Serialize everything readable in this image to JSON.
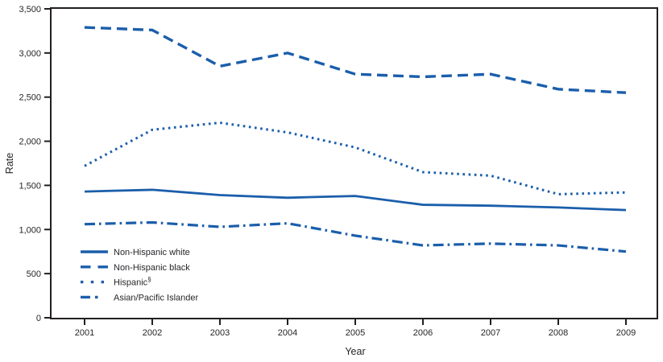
{
  "chart_data": {
    "type": "line",
    "title": "",
    "xlabel": "Year",
    "ylabel": "Rate",
    "x": [
      "2001",
      "2002",
      "2003",
      "2004",
      "2005",
      "2006",
      "2007",
      "2008",
      "2009"
    ],
    "ylim": [
      0,
      3500
    ],
    "ytick_labels": [
      "0",
      "500",
      "1,000",
      "1,500",
      "2,000",
      "2,500",
      "3,000",
      "3,500"
    ],
    "grid": false,
    "legend_position": "inside bottom-left",
    "series": [
      {
        "name": "Non-Hispanic white",
        "sup": "",
        "line_style": "solid",
        "values": [
          1430,
          1450,
          1390,
          1360,
          1380,
          1280,
          1270,
          1250,
          1220
        ]
      },
      {
        "name": "Non-Hispanic black",
        "sup": "",
        "line_style": "dashed",
        "values": [
          3290,
          3260,
          2850,
          3000,
          2760,
          2730,
          2760,
          2590,
          2550
        ]
      },
      {
        "name": "Hispanic",
        "sup": "§",
        "line_style": "dotted",
        "values": [
          1720,
          2130,
          2210,
          2100,
          1930,
          1650,
          1610,
          1400,
          1420
        ]
      },
      {
        "name": "Asian/Pacific Islander",
        "sup": "",
        "line_style": "dashdot",
        "values": [
          1060,
          1080,
          1030,
          1070,
          930,
          820,
          840,
          820,
          750
        ]
      }
    ],
    "colors": {
      "line": "#1b5eab",
      "text": "#26262a",
      "frame": "#231f20",
      "background": "#ffffff"
    }
  }
}
